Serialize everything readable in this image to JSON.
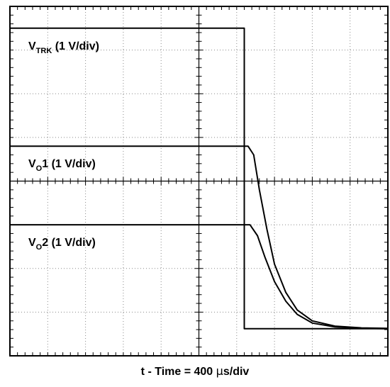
{
  "chart_data": {
    "type": "line",
    "xlabel": {
      "prefix": "t - Time = 400 ",
      "unit_symbol": "µ",
      "suffix": "s/div"
    },
    "grid": {
      "divisions_x": 10,
      "divisions_y": 8,
      "minor_ticks_per_division": 5,
      "style": "dotted"
    },
    "x_range_div": [
      0,
      10
    ],
    "y_range_div": [
      0,
      8
    ],
    "series": [
      {
        "label": {
          "main": "V",
          "sub": "TRK",
          "tail": " (1 V/div)"
        },
        "points_div": [
          [
            0,
            7.5
          ],
          [
            6.2,
            7.5
          ],
          [
            6.2,
            0.62
          ],
          [
            6.4,
            0.62
          ],
          [
            10,
            0.62
          ]
        ]
      },
      {
        "label": {
          "main": "V",
          "sub": "O",
          "tail": "1 (1 V/div)"
        },
        "points_div": [
          [
            0,
            4.8
          ],
          [
            6.3,
            4.8
          ],
          [
            6.45,
            4.6
          ],
          [
            6.6,
            3.8
          ],
          [
            6.8,
            2.9
          ],
          [
            7.0,
            2.1
          ],
          [
            7.3,
            1.45
          ],
          [
            7.6,
            1.05
          ],
          [
            8.0,
            0.8
          ],
          [
            8.6,
            0.68
          ],
          [
            9.3,
            0.64
          ],
          [
            10,
            0.63
          ]
        ]
      },
      {
        "label": {
          "main": "V",
          "sub": "O",
          "tail": "2 (1 V/div)"
        },
        "points_div": [
          [
            0,
            3.0
          ],
          [
            6.35,
            3.0
          ],
          [
            6.55,
            2.75
          ],
          [
            6.75,
            2.25
          ],
          [
            7.0,
            1.7
          ],
          [
            7.3,
            1.25
          ],
          [
            7.6,
            0.95
          ],
          [
            8.0,
            0.75
          ],
          [
            8.6,
            0.66
          ],
          [
            9.3,
            0.63
          ],
          [
            10,
            0.62
          ]
        ]
      }
    ]
  }
}
